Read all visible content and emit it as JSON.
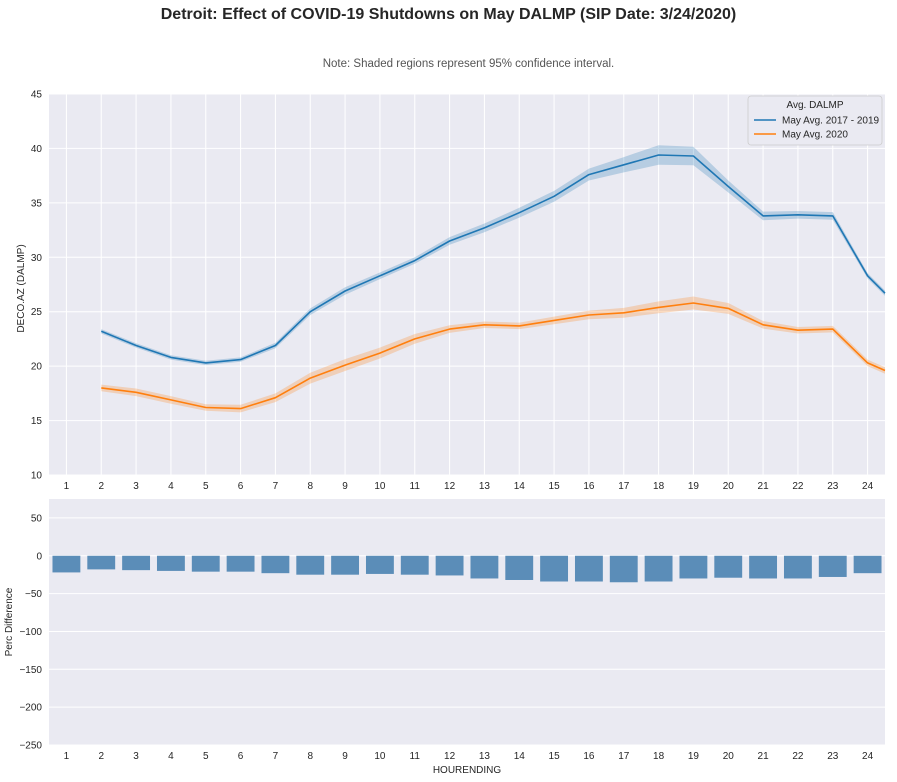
{
  "title": "Detroit: Effect of COVID-19 Shutdowns on May DALMP (SIP Date: 3/24/2020)",
  "note": "Note: Shaded regions represent 95% confidence interval.",
  "chart_data": [
    {
      "type": "line",
      "xlabel": "",
      "ylabel": "DECO.AZ (DALMP)",
      "ylim": [
        10,
        45
      ],
      "xlim": [
        0.5,
        24.5
      ],
      "yticks": [
        10,
        15,
        20,
        25,
        30,
        35,
        40,
        45
      ],
      "x": [
        1,
        2,
        3,
        4,
        5,
        6,
        7,
        8,
        9,
        10,
        11,
        12,
        13,
        14,
        15,
        16,
        17,
        18,
        19,
        20,
        21,
        22,
        23,
        24
      ],
      "x_tick_labels": [
        "1",
        "2",
        "3",
        "4",
        "5",
        "6",
        "7",
        "8",
        "9",
        "10",
        "11",
        "12",
        "13",
        "14",
        "15",
        "16",
        "17",
        "18",
        "19",
        "20",
        "21",
        "22",
        "23",
        "24"
      ],
      "grid": true,
      "legend": {
        "title": "Avg. DALMP",
        "placement": "top-right"
      },
      "series": [
        {
          "name": "May Avg. 2017 - 2019",
          "color": "#1f77b4",
          "x": [
            2,
            3,
            4,
            5,
            6,
            7,
            8,
            9,
            10,
            11,
            12,
            13,
            14,
            15,
            16,
            17,
            18,
            19,
            20,
            21,
            22,
            23,
            24,
            24.5
          ],
          "values": [
            23.2,
            21.9,
            20.8,
            20.3,
            20.6,
            21.9,
            25.0,
            26.9,
            28.3,
            29.7,
            31.5,
            32.7,
            34.1,
            35.6,
            37.6,
            38.5,
            39.4,
            39.3,
            36.5,
            33.8,
            33.9,
            33.8,
            28.3,
            26.7
          ],
          "ci_half_width": [
            0.2,
            0.2,
            0.2,
            0.2,
            0.2,
            0.25,
            0.3,
            0.35,
            0.3,
            0.3,
            0.35,
            0.4,
            0.45,
            0.5,
            0.55,
            0.7,
            0.9,
            0.85,
            0.55,
            0.4,
            0.35,
            0.35,
            0.25,
            0.25
          ]
        },
        {
          "name": "May Avg. 2020",
          "color": "#ff7f0e",
          "x": [
            2,
            3,
            4,
            5,
            6,
            7,
            8,
            9,
            10,
            11,
            12,
            13,
            14,
            15,
            16,
            17,
            18,
            19,
            20,
            21,
            22,
            23,
            24,
            24.5
          ],
          "values": [
            18.0,
            17.6,
            16.9,
            16.2,
            16.1,
            17.1,
            18.9,
            20.1,
            21.2,
            22.5,
            23.4,
            23.8,
            23.7,
            24.2,
            24.7,
            24.9,
            25.4,
            25.8,
            25.3,
            23.8,
            23.3,
            23.4,
            20.3,
            19.6
          ],
          "ci_half_width": [
            0.3,
            0.35,
            0.35,
            0.3,
            0.35,
            0.4,
            0.5,
            0.55,
            0.5,
            0.45,
            0.35,
            0.3,
            0.3,
            0.35,
            0.4,
            0.45,
            0.55,
            0.6,
            0.5,
            0.35,
            0.3,
            0.3,
            0.3,
            0.3
          ]
        }
      ]
    },
    {
      "type": "bar",
      "xlabel": "HOURENDING",
      "ylabel": "Perc Difference",
      "ylim": [
        -250,
        75
      ],
      "yticks": [
        50,
        0,
        -50,
        -100,
        -150,
        -200,
        -250
      ],
      "grid": true,
      "categories": [
        "1",
        "2",
        "3",
        "4",
        "5",
        "6",
        "7",
        "8",
        "9",
        "10",
        "11",
        "12",
        "13",
        "14",
        "15",
        "16",
        "17",
        "18",
        "19",
        "20",
        "21",
        "22",
        "23",
        "24"
      ],
      "values": [
        -22,
        -18,
        -19,
        -20,
        -21,
        -21,
        -23,
        -25,
        -25,
        -24,
        -25,
        -26,
        -30,
        -32,
        -34,
        -34,
        -35,
        -34,
        -30,
        -29,
        -30,
        -30,
        -28,
        -23
      ],
      "color": "#5b8db8"
    }
  ]
}
